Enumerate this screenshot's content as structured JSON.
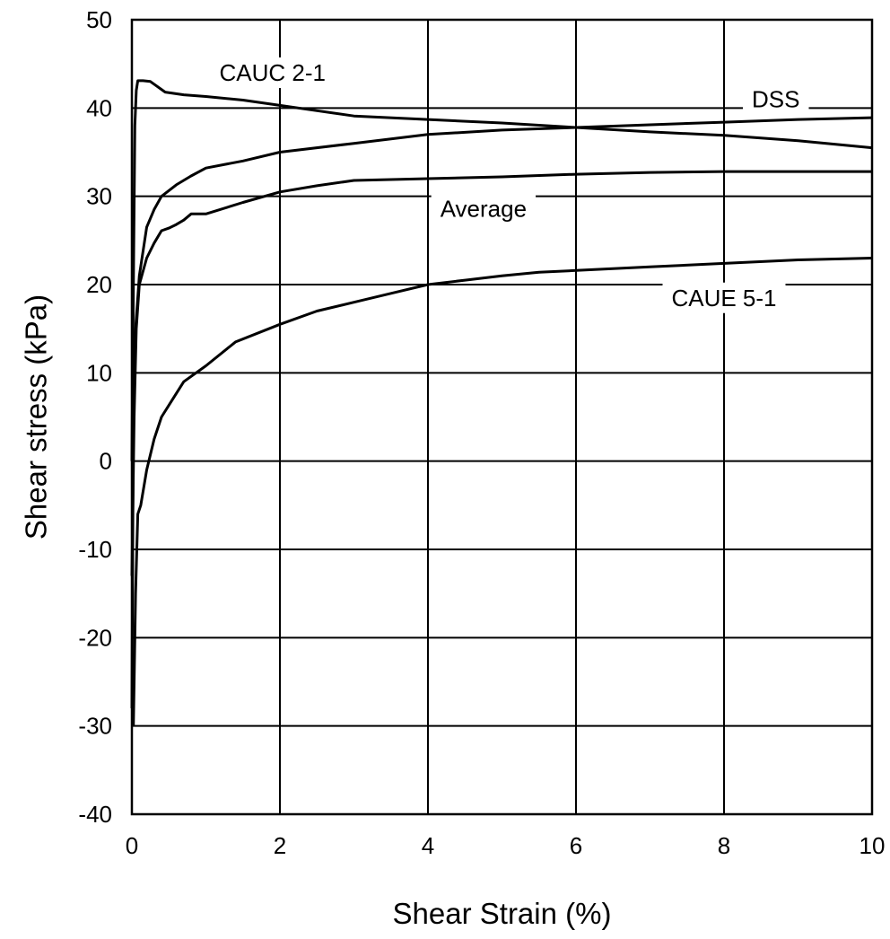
{
  "chart_data": {
    "type": "line",
    "title": "",
    "xlabel": "Shear Strain (%)",
    "ylabel": "Shear stress (kPa)",
    "xlim": [
      0,
      10
    ],
    "ylim": [
      -40,
      50
    ],
    "xticks": [
      0,
      2,
      4,
      6,
      8,
      10
    ],
    "yticks": [
      -40,
      -30,
      -20,
      -10,
      0,
      10,
      20,
      30,
      40,
      50
    ],
    "grid": true,
    "line_color": "#000000",
    "series": [
      {
        "name": "CAUC 2-1",
        "points": [
          [
            0,
            0
          ],
          [
            0.02,
            20
          ],
          [
            0.04,
            38
          ],
          [
            0.06,
            42
          ],
          [
            0.08,
            43.1
          ],
          [
            0.15,
            43.1
          ],
          [
            0.25,
            43
          ],
          [
            0.3,
            42.7
          ],
          [
            0.45,
            41.8
          ],
          [
            0.7,
            41.5
          ],
          [
            1.0,
            41.3
          ],
          [
            1.5,
            40.9
          ],
          [
            2.0,
            40.3
          ],
          [
            2.5,
            39.7
          ],
          [
            3.0,
            39.1
          ],
          [
            4.0,
            38.7
          ],
          [
            5.0,
            38.3
          ],
          [
            6.0,
            37.8
          ],
          [
            7.0,
            37.3
          ],
          [
            8.0,
            36.9
          ],
          [
            9.0,
            36.3
          ],
          [
            10.0,
            35.5
          ]
        ]
      },
      {
        "name": "DSS",
        "points": [
          [
            0,
            -28
          ],
          [
            0.02,
            5
          ],
          [
            0.05,
            15
          ],
          [
            0.1,
            21
          ],
          [
            0.2,
            26.5
          ],
          [
            0.3,
            28.5
          ],
          [
            0.4,
            30
          ],
          [
            0.6,
            31.3
          ],
          [
            0.8,
            32.3
          ],
          [
            1.0,
            33.2
          ],
          [
            1.5,
            34
          ],
          [
            2.0,
            35
          ],
          [
            3.0,
            36
          ],
          [
            4.0,
            37
          ],
          [
            5.0,
            37.5
          ],
          [
            6.0,
            37.8
          ],
          [
            7.0,
            38.1
          ],
          [
            8.0,
            38.4
          ],
          [
            9.0,
            38.7
          ],
          [
            10.0,
            38.9
          ]
        ]
      },
      {
        "name": "Average",
        "points": [
          [
            0,
            -13
          ],
          [
            0.03,
            5
          ],
          [
            0.06,
            15
          ],
          [
            0.1,
            20
          ],
          [
            0.2,
            23
          ],
          [
            0.3,
            24.7
          ],
          [
            0.4,
            26.1
          ],
          [
            0.5,
            26.4
          ],
          [
            0.6,
            26.8
          ],
          [
            0.7,
            27.3
          ],
          [
            0.8,
            28
          ],
          [
            1.0,
            28
          ],
          [
            1.5,
            29.3
          ],
          [
            2.0,
            30.5
          ],
          [
            2.5,
            31.2
          ],
          [
            3.0,
            31.8
          ],
          [
            4.0,
            32
          ],
          [
            5.0,
            32.2
          ],
          [
            6.0,
            32.5
          ],
          [
            7.0,
            32.7
          ],
          [
            8.0,
            32.8
          ],
          [
            10.0,
            32.8
          ]
        ]
      },
      {
        "name": "CAUE 5-1",
        "points": [
          [
            0.02,
            -30
          ],
          [
            0.05,
            -15
          ],
          [
            0.08,
            -6
          ],
          [
            0.12,
            -5
          ],
          [
            0.2,
            -1
          ],
          [
            0.3,
            2.5
          ],
          [
            0.4,
            5
          ],
          [
            0.55,
            7
          ],
          [
            0.7,
            9
          ],
          [
            1.0,
            10.8
          ],
          [
            1.4,
            13.5
          ],
          [
            2.0,
            15.5
          ],
          [
            2.5,
            17
          ],
          [
            3.0,
            18
          ],
          [
            3.5,
            19
          ],
          [
            4.0,
            20
          ],
          [
            4.5,
            20.5
          ],
          [
            5.0,
            21
          ],
          [
            5.5,
            21.4
          ],
          [
            6.0,
            21.6
          ],
          [
            7.0,
            22
          ],
          [
            8.0,
            22.4
          ],
          [
            9.0,
            22.8
          ],
          [
            10.0,
            23
          ]
        ]
      }
    ],
    "annotations": [
      {
        "text": "CAUC 2-1",
        "x": 1.9,
        "y": 44
      },
      {
        "text": "DSS",
        "x": 8.7,
        "y": 41
      },
      {
        "text": "Average",
        "x": 4.75,
        "y": 28.6
      },
      {
        "text": "CAUE 5-1",
        "x": 8.0,
        "y": 18.5
      }
    ]
  }
}
